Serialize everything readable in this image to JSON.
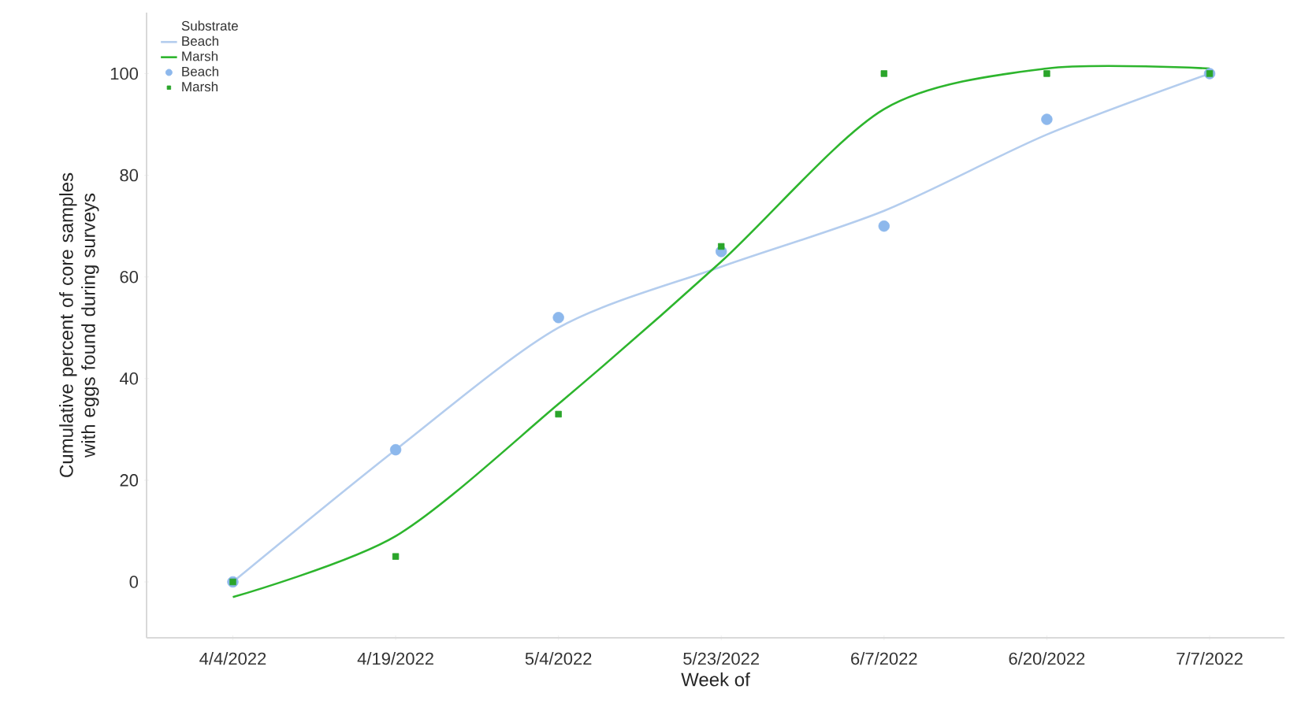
{
  "chart_data": {
    "type": "line",
    "categories": [
      "4/4/2022",
      "4/19/2022",
      "5/4/2022",
      "5/23/2022",
      "6/7/2022",
      "6/20/2022",
      "7/7/2022"
    ],
    "xlabel": "Week of",
    "ylabel": "Cumulative percent of core samples with eggs found during surveys",
    "legend_title": "Substrate",
    "legend": "top left",
    "ylim": [
      -11,
      112
    ],
    "yticks": [
      0,
      20,
      40,
      60,
      80,
      100
    ],
    "series": [
      {
        "name": "Beach",
        "color": "#b4cdee",
        "marker": "none",
        "line_style": "solid",
        "values": [
          0,
          26,
          50,
          62,
          73,
          88,
          100
        ]
      },
      {
        "name": "Marsh",
        "color": "#2db52d",
        "marker": "none",
        "line_style": "solid",
        "values": [
          -3,
          9,
          35,
          63,
          93,
          101,
          101
        ]
      },
      {
        "name": "Beach",
        "type": "scatter",
        "color": "#8db8ec",
        "marker": "circle",
        "values": [
          0,
          26,
          52,
          65,
          70,
          91,
          100
        ]
      },
      {
        "name": "Marsh",
        "type": "scatter",
        "color": "#2aa52a",
        "marker": "square",
        "values": [
          0,
          5,
          33,
          66,
          100,
          100,
          100
        ]
      }
    ]
  }
}
